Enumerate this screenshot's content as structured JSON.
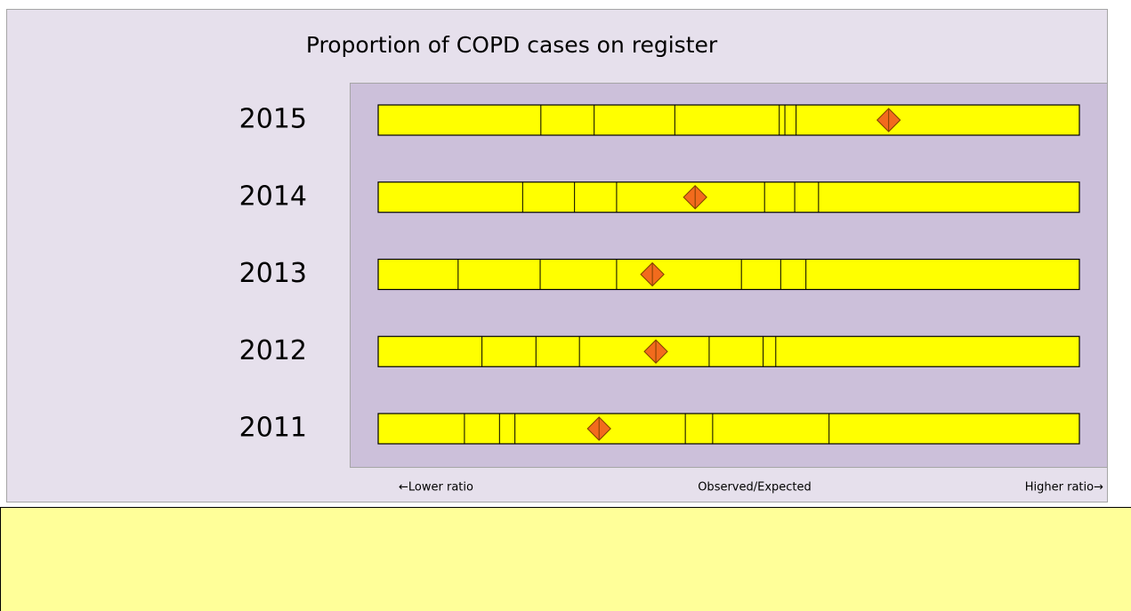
{
  "chart_data": {
    "type": "stripe",
    "title": "Proportion of COPD cases on register",
    "categories": [
      "2015",
      "2014",
      "2013",
      "2012",
      "2011"
    ],
    "xlim": [
      0,
      100
    ],
    "dividers": [
      [
        23.2,
        30.8,
        42.3,
        57.2,
        58.0,
        59.6
      ],
      [
        20.6,
        28.0,
        34.0,
        55.1,
        59.4,
        62.8
      ],
      [
        11.4,
        23.1,
        34.0,
        51.8,
        57.4,
        61.0
      ],
      [
        14.8,
        22.5,
        28.7,
        47.2,
        54.9,
        56.7
      ],
      [
        12.3,
        17.3,
        19.5,
        43.8,
        47.7,
        64.3
      ]
    ],
    "values": [
      72.8,
      45.2,
      39.1,
      39.6,
      31.5
    ],
    "color": "#ffff00",
    "marker_color": "#f26b1d",
    "x_labels": [
      "←Lower ratio",
      "Observed/Expected",
      "Higher ratio→"
    ]
  }
}
